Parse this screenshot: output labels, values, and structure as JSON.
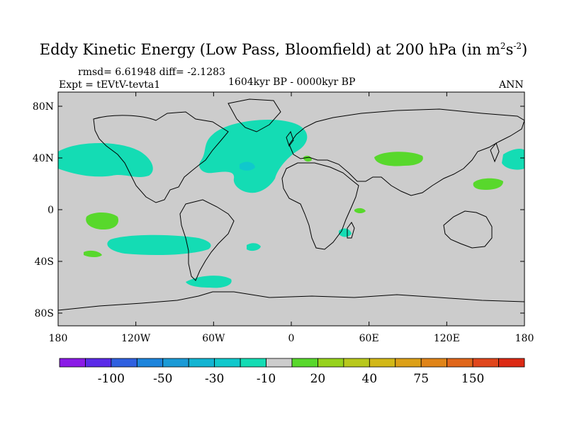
{
  "title": {
    "main": "Eddy Kinetic Energy (Low Pass, Bloomfield) at 200 hPa (in m",
    "sup1": "2",
    "mid": "s",
    "sup2": "-2",
    "end": ")"
  },
  "stats": "rmsd= 6.61948 diff= -2.1283",
  "expt": "Expt = tEVtV-tevta1",
  "period": "1604kyr BP - 0000kyr BP",
  "season": "ANN",
  "axes": {
    "lat_labels": [
      "80N",
      "40N",
      "0",
      "40S",
      "80S"
    ],
    "lon_labels": [
      "180",
      "120W",
      "60W",
      "0",
      "60E",
      "120E",
      "180"
    ]
  },
  "colorbar": {
    "colors": [
      "#8a1ae6",
      "#5a2ae8",
      "#2f60e0",
      "#1c84dc",
      "#1a9ad6",
      "#12b4d2",
      "#10c8cc",
      "#14dcb4",
      "#cccccc",
      "#58d82c",
      "#96d21c",
      "#b8c81c",
      "#d2b818",
      "#dca018",
      "#e08418",
      "#e0661a",
      "#e0461c",
      "#dc2a14"
    ],
    "labels": [
      {
        "text": "-100",
        "at_boundary": 2
      },
      {
        "text": "-50",
        "at_boundary": 4
      },
      {
        "text": "-30",
        "at_boundary": 6
      },
      {
        "text": "-10",
        "at_boundary": 8
      },
      {
        "text": "20",
        "at_boundary": 10
      },
      {
        "text": "40",
        "at_boundary": 12
      },
      {
        "text": "75",
        "at_boundary": 14
      },
      {
        "text": "150",
        "at_boundary": 16
      }
    ]
  },
  "colors": {
    "background": "#cccccc",
    "negative": "#14dcb4",
    "negative_strong": "#10c8cc",
    "positive": "#58d82c",
    "coast": "#000000"
  }
}
